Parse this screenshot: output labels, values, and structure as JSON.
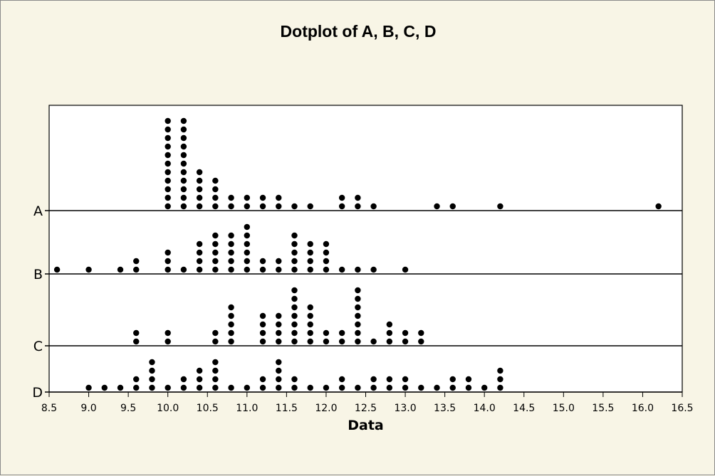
{
  "chart_data": {
    "type": "scatter",
    "subtype": "dotplot",
    "title": "Dotplot of A, B, C, D",
    "xlabel": "Data",
    "ylabel": "",
    "xlim": [
      8.5,
      16.5
    ],
    "xticks": [
      "8.5",
      "9.0",
      "9.5",
      "10.0",
      "10.5",
      "11.0",
      "11.5",
      "12.0",
      "12.5",
      "13.0",
      "13.5",
      "14.0",
      "14.5",
      "15.0",
      "15.5",
      "16.0",
      "16.5"
    ],
    "categories": [
      "A",
      "B",
      "C",
      "D"
    ],
    "grid": false,
    "legend": "none",
    "dot_color": "#000000",
    "series": [
      {
        "name": "A",
        "dots": [
          [
            10.0,
            11
          ],
          [
            10.2,
            11
          ],
          [
            10.4,
            5
          ],
          [
            10.6,
            4
          ],
          [
            10.8,
            2
          ],
          [
            11.0,
            2
          ],
          [
            11.2,
            2
          ],
          [
            11.4,
            2
          ],
          [
            11.6,
            1
          ],
          [
            11.8,
            1
          ],
          [
            12.2,
            2
          ],
          [
            12.4,
            2
          ],
          [
            12.6,
            1
          ],
          [
            13.4,
            1
          ],
          [
            13.6,
            1
          ],
          [
            14.2,
            1
          ],
          [
            16.2,
            1
          ]
        ]
      },
      {
        "name": "B",
        "dots": [
          [
            8.6,
            1
          ],
          [
            9.0,
            1
          ],
          [
            9.4,
            1
          ],
          [
            9.6,
            2
          ],
          [
            10.0,
            3
          ],
          [
            10.2,
            1
          ],
          [
            10.4,
            4
          ],
          [
            10.6,
            5
          ],
          [
            10.8,
            5
          ],
          [
            11.0,
            6
          ],
          [
            11.2,
            2
          ],
          [
            11.4,
            2
          ],
          [
            11.6,
            5
          ],
          [
            11.8,
            4
          ],
          [
            12.0,
            4
          ],
          [
            12.2,
            1
          ],
          [
            12.4,
            1
          ],
          [
            12.6,
            1
          ],
          [
            13.0,
            1
          ]
        ]
      },
      {
        "name": "C",
        "dots": [
          [
            9.6,
            2
          ],
          [
            10.0,
            2
          ],
          [
            10.6,
            2
          ],
          [
            10.8,
            5
          ],
          [
            11.2,
            4
          ],
          [
            11.4,
            4
          ],
          [
            11.6,
            7
          ],
          [
            11.8,
            5
          ],
          [
            12.0,
            2
          ],
          [
            12.2,
            2
          ],
          [
            12.4,
            7
          ],
          [
            12.6,
            1
          ],
          [
            12.8,
            3
          ],
          [
            13.0,
            2
          ],
          [
            13.2,
            2
          ]
        ]
      },
      {
        "name": "D",
        "dots": [
          [
            9.0,
            1
          ],
          [
            9.2,
            1
          ],
          [
            9.4,
            1
          ],
          [
            9.6,
            2
          ],
          [
            9.8,
            4
          ],
          [
            10.0,
            1
          ],
          [
            10.2,
            2
          ],
          [
            10.4,
            3
          ],
          [
            10.6,
            4
          ],
          [
            10.8,
            1
          ],
          [
            11.0,
            1
          ],
          [
            11.2,
            2
          ],
          [
            11.4,
            4
          ],
          [
            11.6,
            2
          ],
          [
            11.8,
            1
          ],
          [
            12.0,
            1
          ],
          [
            12.2,
            2
          ],
          [
            12.4,
            1
          ],
          [
            12.6,
            2
          ],
          [
            12.8,
            2
          ],
          [
            13.0,
            2
          ],
          [
            13.2,
            1
          ],
          [
            13.4,
            1
          ],
          [
            13.6,
            2
          ],
          [
            13.8,
            2
          ],
          [
            14.0,
            1
          ],
          [
            14.2,
            3
          ]
        ]
      }
    ]
  }
}
